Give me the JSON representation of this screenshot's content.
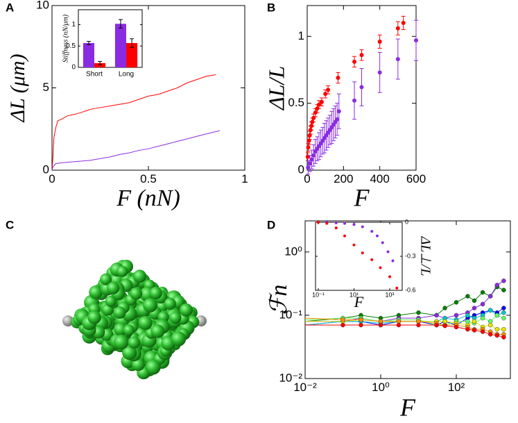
{
  "panel_labels": [
    "A",
    "B",
    "C",
    "D"
  ],
  "chart_data": [
    {
      "type": "line",
      "xlabel": "F (nN)",
      "ylabel": "ΔL (μm)",
      "xlim": [
        0,
        1
      ],
      "ylim": [
        0,
        10
      ],
      "xticks": [
        0,
        0.5,
        1
      ],
      "yticks": [
        0,
        5,
        10
      ],
      "series": [
        {
          "color": "#ff0000",
          "x": [
            0,
            0.005,
            0.01,
            0.02,
            0.03,
            0.05,
            0.08,
            0.12,
            0.15,
            0.2,
            0.25,
            0.3,
            0.35,
            0.4,
            0.45,
            0.5,
            0.55,
            0.6,
            0.65,
            0.7,
            0.75,
            0.8,
            0.85
          ],
          "values": [
            0,
            0.8,
            2.0,
            2.6,
            3.0,
            3.1,
            3.3,
            3.4,
            3.5,
            3.7,
            3.8,
            3.9,
            4.0,
            4.1,
            4.3,
            4.5,
            4.6,
            4.8,
            5.0,
            5.3,
            5.5,
            5.7,
            5.8
          ]
        },
        {
          "color": "#8a2be2",
          "x": [
            0,
            0.005,
            0.02,
            0.05,
            0.1,
            0.15,
            0.2,
            0.25,
            0.3,
            0.35,
            0.4,
            0.45,
            0.5,
            0.55,
            0.6,
            0.65,
            0.7,
            0.75,
            0.8,
            0.87
          ],
          "values": [
            0,
            0.2,
            0.4,
            0.45,
            0.5,
            0.55,
            0.6,
            0.7,
            0.8,
            0.95,
            1.05,
            1.2,
            1.3,
            1.45,
            1.6,
            1.75,
            1.9,
            2.05,
            2.2,
            2.4
          ]
        }
      ]
    },
    {
      "type": "bar",
      "ylabel": "Stiffness (nN/μm)",
      "categories": [
        "Short",
        "Long"
      ],
      "ylim": [
        0,
        1.35
      ],
      "yticks": [
        0,
        0.5,
        1
      ],
      "series": [
        {
          "color": "#8a2be2",
          "values": [
            0.57,
            1.02
          ],
          "errors": [
            0.04,
            0.1
          ]
        },
        {
          "color": "#ff0000",
          "values": [
            0.1,
            0.57
          ],
          "errors": [
            0.04,
            0.1
          ]
        }
      ]
    },
    {
      "type": "scatter",
      "xlabel": "F",
      "ylabel": "ΔL/L",
      "xlim": [
        0,
        600
      ],
      "ylim": [
        0,
        1.23
      ],
      "xticks": [
        0,
        200,
        400,
        600
      ],
      "yticks": [
        0,
        0.5,
        1
      ],
      "series": [
        {
          "color": "#ff0000",
          "x": [
            3,
            6,
            10,
            14,
            18,
            23,
            28,
            35,
            45,
            55,
            65,
            80,
            100,
            115,
            170,
            260,
            300,
            400,
            500,
            530
          ],
          "values": [
            0.1,
            0.17,
            0.22,
            0.26,
            0.3,
            0.33,
            0.36,
            0.39,
            0.43,
            0.46,
            0.49,
            0.51,
            0.57,
            0.6,
            0.69,
            0.81,
            0.86,
            0.96,
            1.06,
            1.1
          ],
          "errors": [
            0.03,
            0.03,
            0.03,
            0.03,
            0.03,
            0.03,
            0.03,
            0.03,
            0.03,
            0.03,
            0.03,
            0.03,
            0.03,
            0.03,
            0.04,
            0.04,
            0.04,
            0.05,
            0.05,
            0.05
          ]
        },
        {
          "color": "#8a2be2",
          "x": [
            5,
            15,
            25,
            35,
            45,
            55,
            65,
            75,
            85,
            95,
            105,
            115,
            125,
            135,
            145,
            155,
            165,
            175,
            260,
            300,
            400,
            500,
            600
          ],
          "values": [
            0.02,
            0.05,
            0.08,
            0.11,
            0.14,
            0.16,
            0.18,
            0.2,
            0.22,
            0.24,
            0.26,
            0.28,
            0.3,
            0.32,
            0.34,
            0.36,
            0.38,
            0.44,
            0.52,
            0.62,
            0.73,
            0.83,
            0.97
          ],
          "errors": [
            0.05,
            0.06,
            0.07,
            0.08,
            0.09,
            0.09,
            0.1,
            0.1,
            0.1,
            0.11,
            0.11,
            0.11,
            0.11,
            0.12,
            0.12,
            0.12,
            0.12,
            0.13,
            0.14,
            0.14,
            0.15,
            0.15,
            0.15
          ]
        }
      ]
    },
    {
      "type": "line",
      "xlabel": "F",
      "ylabel": "ℱn",
      "xlog": true,
      "ylog": true,
      "xlim": [
        0.01,
        2700
      ],
      "ylim": [
        0.01,
        3.1
      ],
      "xticks": [
        {
          "value": 0.01,
          "label": "10⁻²"
        },
        {
          "value": 1,
          "label": "10⁰"
        },
        {
          "value": 100,
          "label": "10²"
        }
      ],
      "yticks": [
        {
          "value": 0.01,
          "label": "10⁻²"
        },
        {
          "value": 0.1,
          "label": "10⁻¹"
        },
        {
          "value": 1,
          "label": "10⁰"
        }
      ],
      "series": [
        {
          "color": "#008000",
          "x": [
            0.01,
            0.1,
            0.3,
            1,
            3,
            10,
            30,
            50,
            100,
            200,
            300,
            500,
            800,
            1200,
            1800
          ],
          "values": [
            0.08,
            0.09,
            0.1,
            0.09,
            0.1,
            0.11,
            0.1,
            0.13,
            0.16,
            0.2,
            0.17,
            0.23,
            0.2,
            0.28,
            0.25
          ]
        },
        {
          "color": "#8a2be2",
          "x": [
            0.01,
            0.1,
            0.3,
            1,
            3,
            10,
            30,
            50,
            100,
            200,
            300,
            500,
            800,
            1200,
            1800
          ],
          "values": [
            0.08,
            0.08,
            0.09,
            0.08,
            0.09,
            0.09,
            0.1,
            0.09,
            0.1,
            0.11,
            0.13,
            0.15,
            0.2,
            0.3,
            0.35
          ]
        },
        {
          "color": "#0000ff",
          "x": [
            0.01,
            0.1,
            0.3,
            1,
            3,
            10,
            30,
            50,
            100,
            200,
            300,
            500,
            800,
            1200,
            1800
          ],
          "values": [
            0.07,
            0.08,
            0.08,
            0.07,
            0.08,
            0.08,
            0.07,
            0.08,
            0.07,
            0.09,
            0.1,
            0.11,
            0.12,
            0.11,
            0.13
          ]
        },
        {
          "color": "#00cccc",
          "x": [
            0.01,
            0.1,
            0.3,
            1,
            3,
            10,
            30,
            50,
            100,
            200,
            300,
            500,
            800,
            1200,
            1800
          ],
          "values": [
            0.07,
            0.08,
            0.08,
            0.075,
            0.08,
            0.08,
            0.08,
            0.09,
            0.085,
            0.1,
            0.09,
            0.1,
            0.12,
            0.1,
            0.11
          ]
        },
        {
          "color": "#66ff66",
          "x": [
            0.01,
            0.1,
            0.3,
            1,
            3,
            10,
            30,
            50,
            100,
            200,
            300,
            500,
            800,
            1200,
            1800
          ],
          "values": [
            0.085,
            0.09,
            0.09,
            0.08,
            0.085,
            0.085,
            0.07,
            0.07,
            0.08,
            0.08,
            0.075,
            0.09,
            0.08,
            0.1,
            0.09
          ]
        },
        {
          "color": "#e6e600",
          "x": [
            0.01,
            0.1,
            0.3,
            1,
            3,
            10,
            30,
            50,
            100,
            200,
            300,
            500,
            800,
            1200,
            1800
          ],
          "values": [
            0.08,
            0.08,
            0.085,
            0.08,
            0.08,
            0.08,
            0.08,
            0.08,
            0.075,
            0.07,
            0.08,
            0.065,
            0.07,
            0.06,
            0.06
          ]
        },
        {
          "color": "#ff8c00",
          "x": [
            0.01,
            0.1,
            0.3,
            1,
            3,
            10,
            30,
            50,
            100,
            200,
            300,
            500,
            800,
            1200,
            1800
          ],
          "values": [
            0.09,
            0.085,
            0.085,
            0.08,
            0.08,
            0.08,
            0.075,
            0.07,
            0.07,
            0.065,
            0.06,
            0.06,
            0.055,
            0.05,
            0.05
          ]
        },
        {
          "color": "#ff0000",
          "x": [
            0.01,
            0.1,
            0.3,
            1,
            3,
            10,
            30,
            50,
            100,
            200,
            300,
            500,
            800,
            1200,
            1800
          ],
          "values": [
            0.07,
            0.07,
            0.07,
            0.07,
            0.07,
            0.07,
            0.07,
            0.068,
            0.065,
            0.06,
            0.058,
            0.055,
            0.05,
            0.048,
            0.045
          ]
        }
      ]
    },
    {
      "type": "scatter",
      "xlabel": "F",
      "ylabel": "ΔL⊥/L",
      "xlog": true,
      "xlim": [
        0.07,
        5000
      ],
      "ylim": [
        -0.6,
        0
      ],
      "xticks": [
        {
          "value": 0.1,
          "label": "10⁻¹"
        },
        {
          "value": 10,
          "label": "10¹"
        },
        {
          "value": 1000,
          "label": "10³"
        }
      ],
      "yticks": [
        0,
        -0.3,
        -0.6
      ],
      "series": [
        {
          "color": "#8a2be2",
          "x": [
            0.1,
            0.3,
            1,
            3,
            10,
            30,
            100,
            200,
            400,
            800,
            1500
          ],
          "values": [
            0,
            0,
            -0.005,
            -0.01,
            -0.02,
            -0.04,
            -0.08,
            -0.12,
            -0.18,
            -0.26,
            -0.34
          ]
        },
        {
          "color": "#ff0000",
          "x": [
            0.1,
            0.3,
            1,
            3,
            10,
            30,
            100,
            300,
            1000,
            2500
          ],
          "values": [
            0,
            -0.01,
            -0.05,
            -0.12,
            -0.2,
            -0.27,
            -0.33,
            -0.4,
            -0.48,
            -0.58
          ]
        }
      ]
    }
  ]
}
